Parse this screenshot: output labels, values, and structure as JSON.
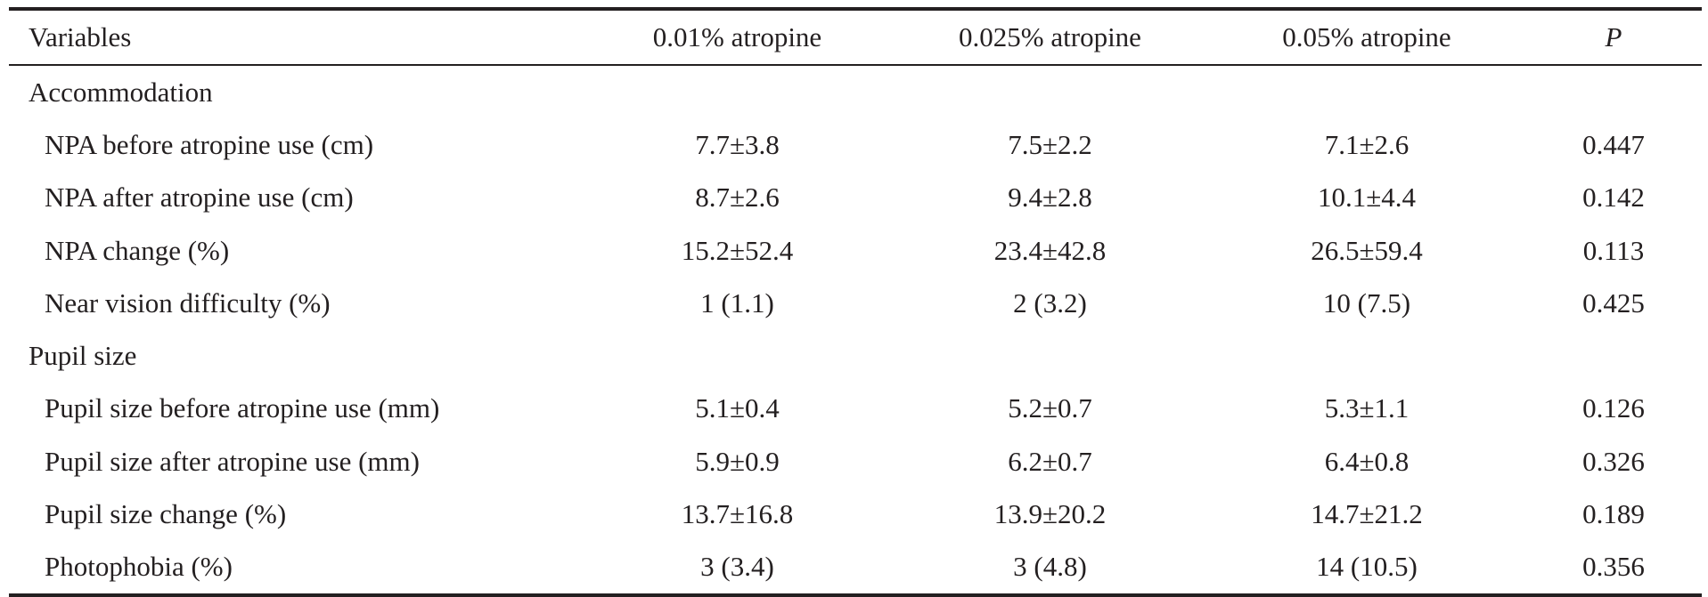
{
  "table": {
    "headers": {
      "variables": "Variables",
      "col1": "0.01% atropine",
      "col2": "0.025% atropine",
      "col3": "0.05% atropine",
      "p": "P"
    },
    "rows": [
      {
        "label": "Accommodation",
        "c1": "",
        "c2": "",
        "c3": "",
        "p": ""
      },
      {
        "label": "NPA before atropine use (cm)",
        "c1": "7.7±3.8",
        "c2": "7.5±2.2",
        "c3": "7.1±2.6",
        "p": "0.447"
      },
      {
        "label": "NPA after atropine use (cm)",
        "c1": "8.7±2.6",
        "c2": "9.4±2.8",
        "c3": "10.1±4.4",
        "p": "0.142"
      },
      {
        "label": "NPA change (%)",
        "c1": "15.2±52.4",
        "c2": "23.4±42.8",
        "c3": "26.5±59.4",
        "p": "0.113"
      },
      {
        "label": "Near vision difficulty (%)",
        "c1": "1 (1.1)",
        "c2": "2 (3.2)",
        "c3": "10 (7.5)",
        "p": "0.425"
      },
      {
        "label": "Pupil size",
        "c1": "",
        "c2": "",
        "c3": "",
        "p": ""
      },
      {
        "label": "Pupil size before atropine use (mm)",
        "c1": "5.1±0.4",
        "c2": "5.2±0.7",
        "c3": "5.3±1.1",
        "p": "0.126"
      },
      {
        "label": "Pupil size after atropine use (mm)",
        "c1": "5.9±0.9",
        "c2": "6.2±0.7",
        "c3": "6.4±0.8",
        "p": "0.326"
      },
      {
        "label": "Pupil size change (%)",
        "c1": "13.7±16.8",
        "c2": "13.9±20.2",
        "c3": "14.7±21.2",
        "p": "0.189"
      },
      {
        "label": "Photophobia (%)",
        "c1": "3 (3.4)",
        "c2": "3 (4.8)",
        "c3": "14 (10.5)",
        "p": "0.356"
      }
    ]
  }
}
